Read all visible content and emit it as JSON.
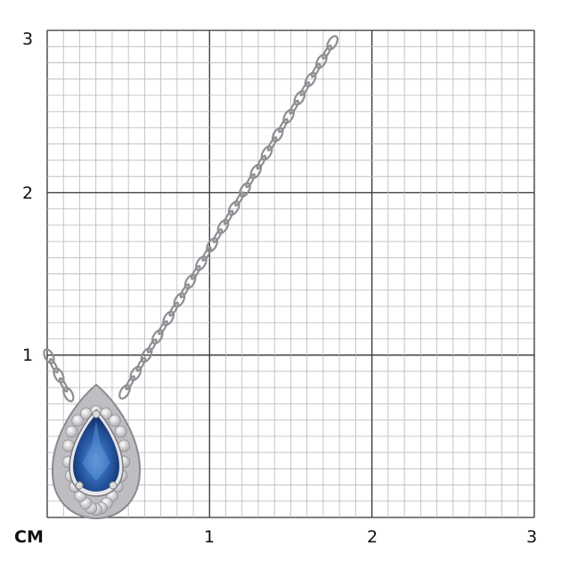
{
  "scale": {
    "unit_label": "CM",
    "x_ticks": [
      "1",
      "2",
      "3"
    ],
    "y_ticks": [
      "1",
      "2",
      "3"
    ],
    "minor_divisions_per_unit": 10
  },
  "product": {
    "type": "pendant necklace",
    "stone_color": "#2a5aa0",
    "metal_color": "#c8c8cc"
  }
}
